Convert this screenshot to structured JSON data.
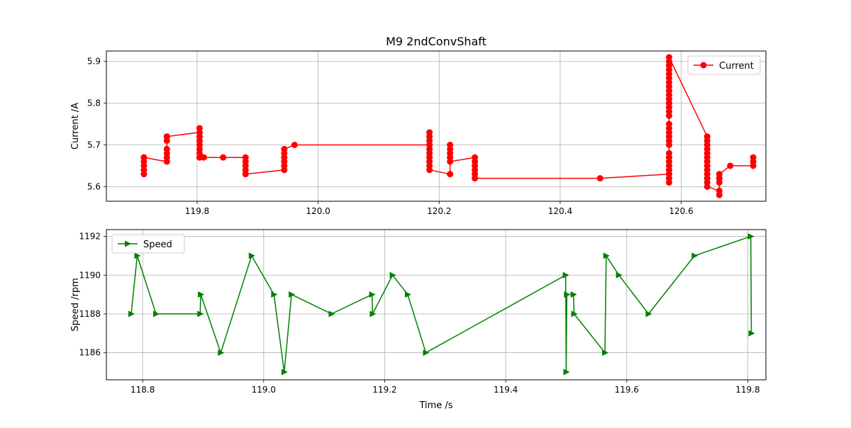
{
  "figure": {
    "title": "M9 2ndConvShaft"
  },
  "chart_data": [
    {
      "type": "line",
      "ylabel": "Current /A",
      "xlabel": "",
      "xlim": [
        119.65,
        120.74
      ],
      "ylim": [
        5.565,
        5.925
      ],
      "xticks": [
        119.8,
        120.0,
        120.2,
        120.4,
        120.6
      ],
      "xtick_labels": [
        "119.8",
        "120.0",
        "120.2",
        "120.4",
        "120.6"
      ],
      "yticks": [
        5.6,
        5.7,
        5.8,
        5.9
      ],
      "ytick_labels": [
        "5.6",
        "5.7",
        "5.8",
        "5.9"
      ],
      "grid": true,
      "legend_position": "upper right",
      "series": [
        {
          "name": "Current",
          "color": "#ff0000",
          "marker": "circle",
          "x": [
            119.712,
            119.712,
            119.712,
            119.712,
            119.712,
            119.712,
            119.75,
            119.75,
            119.75,
            119.75,
            119.75,
            119.75,
            119.75,
            119.804,
            119.804,
            119.804,
            119.804,
            119.804,
            119.804,
            119.804,
            119.804,
            119.804,
            119.811,
            119.843,
            119.88,
            119.88,
            119.88,
            119.88,
            119.88,
            119.944,
            119.944,
            119.944,
            119.944,
            119.944,
            119.944,
            119.961,
            120.184,
            120.184,
            120.184,
            120.184,
            120.184,
            120.184,
            120.184,
            120.184,
            120.184,
            120.184,
            120.184,
            120.218,
            120.218,
            120.218,
            120.218,
            120.218,
            120.218,
            120.259,
            120.259,
            120.259,
            120.259,
            120.259,
            120.259,
            120.466,
            120.58,
            120.58,
            120.58,
            120.58,
            120.58,
            120.58,
            120.58,
            120.58,
            120.58,
            120.58,
            120.58,
            120.58,
            120.58,
            120.58,
            120.58,
            120.58,
            120.58,
            120.58,
            120.58,
            120.58,
            120.58,
            120.58,
            120.58,
            120.58,
            120.58,
            120.58,
            120.58,
            120.58,
            120.58,
            120.58,
            120.643,
            120.643,
            120.643,
            120.643,
            120.643,
            120.643,
            120.643,
            120.643,
            120.643,
            120.643,
            120.643,
            120.643,
            120.643,
            120.663,
            120.663,
            120.663,
            120.663,
            120.663,
            120.681,
            120.719,
            120.719,
            120.719
          ],
          "y": [
            5.63,
            5.64,
            5.65,
            5.66,
            5.67,
            5.67,
            5.66,
            5.67,
            5.68,
            5.69,
            5.71,
            5.72,
            5.72,
            5.73,
            5.74,
            5.72,
            5.71,
            5.7,
            5.69,
            5.68,
            5.67,
            5.67,
            5.67,
            5.67,
            5.67,
            5.66,
            5.65,
            5.64,
            5.63,
            5.64,
            5.65,
            5.66,
            5.67,
            5.68,
            5.69,
            5.7,
            5.7,
            5.73,
            5.72,
            5.71,
            5.7,
            5.69,
            5.68,
            5.67,
            5.66,
            5.65,
            5.64,
            5.63,
            5.7,
            5.69,
            5.68,
            5.67,
            5.66,
            5.67,
            5.66,
            5.65,
            5.64,
            5.63,
            5.62,
            5.62,
            5.63,
            5.61,
            5.62,
            5.63,
            5.64,
            5.65,
            5.66,
            5.67,
            5.68,
            5.7,
            5.71,
            5.72,
            5.73,
            5.74,
            5.75,
            5.77,
            5.78,
            5.79,
            5.8,
            5.81,
            5.82,
            5.83,
            5.84,
            5.85,
            5.86,
            5.87,
            5.88,
            5.89,
            5.9,
            5.91,
            5.72,
            5.71,
            5.7,
            5.69,
            5.68,
            5.67,
            5.66,
            5.65,
            5.64,
            5.63,
            5.62,
            5.61,
            5.6,
            5.59,
            5.58,
            5.61,
            5.62,
            5.63,
            5.65,
            5.65,
            5.66,
            5.67
          ]
        }
      ]
    },
    {
      "type": "line",
      "ylabel": "Speed /rpm",
      "xlabel": "Time /s",
      "xlim": [
        118.74,
        119.83
      ],
      "ylim": [
        1184.6,
        1192.35
      ],
      "xticks": [
        118.8,
        119.0,
        119.2,
        119.4,
        119.6,
        119.8
      ],
      "xtick_labels": [
        "118.8",
        "119.0",
        "119.2",
        "119.4",
        "119.6",
        "119.8"
      ],
      "yticks": [
        1186,
        1188,
        1190,
        1192
      ],
      "ytick_labels": [
        "1186",
        "1188",
        "1190",
        "1192"
      ],
      "grid": true,
      "legend_position": "upper left",
      "series": [
        {
          "name": "Speed",
          "color": "#008000",
          "marker": "triangle-right",
          "x": [
            118.781,
            118.791,
            118.822,
            118.895,
            118.896,
            118.929,
            118.98,
            119.017,
            119.034,
            119.046,
            119.112,
            119.179,
            119.18,
            119.213,
            119.238,
            119.268,
            119.499,
            119.5,
            119.501,
            119.512,
            119.513,
            119.564,
            119.566,
            119.587,
            119.636,
            119.712,
            119.805,
            119.806
          ],
          "y": [
            1188,
            1191,
            1188,
            1188,
            1189,
            1186,
            1191,
            1189,
            1185,
            1189,
            1188,
            1189,
            1188,
            1190,
            1189,
            1186,
            1190,
            1185,
            1189,
            1189,
            1188,
            1186,
            1191,
            1190,
            1188,
            1191,
            1192,
            1187
          ]
        }
      ]
    }
  ]
}
